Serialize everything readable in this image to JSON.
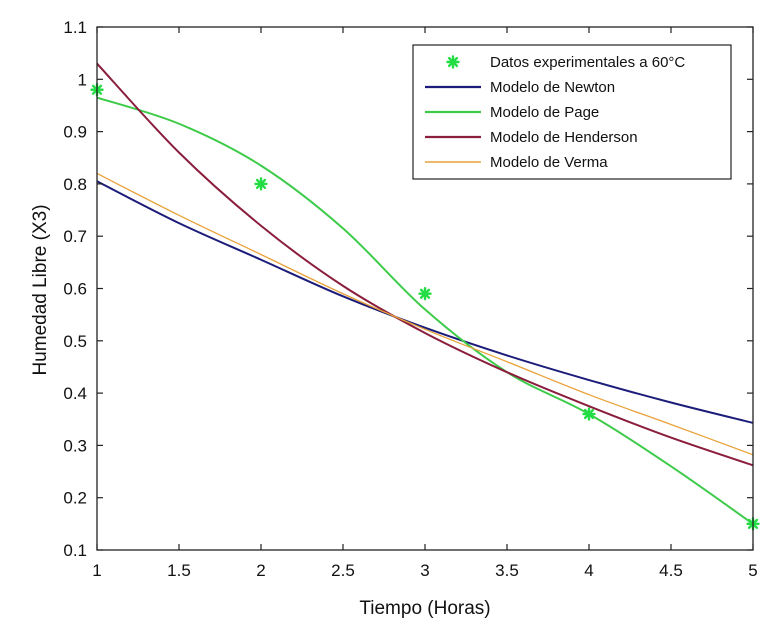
{
  "chart_data": {
    "type": "line",
    "title": "",
    "xlabel": "Tiempo (Horas)",
    "ylabel": "Humedad Libre (X3)",
    "xlim": [
      1,
      5
    ],
    "ylim": [
      0.1,
      1.1
    ],
    "xticks": [
      1,
      1.5,
      2,
      2.5,
      3,
      3.5,
      4,
      4.5,
      5
    ],
    "xtick_labels": [
      "1",
      "1.5",
      "2",
      "2.5",
      "3",
      "3.5",
      "4",
      "4.5",
      "5"
    ],
    "yticks": [
      0.1,
      0.2,
      0.3,
      0.4,
      0.5,
      0.6,
      0.7,
      0.8,
      0.9,
      1,
      1.1
    ],
    "ytick_labels": [
      "0.1",
      "0.2",
      "0.3",
      "0.4",
      "0.5",
      "0.6",
      "0.7",
      "0.8",
      "0.9",
      "1",
      "1.1"
    ],
    "grid": false,
    "legend_position": "top-right",
    "series": [
      {
        "name": "Datos experimentales a 60°C",
        "kind": "marker",
        "color": "#22dd44",
        "x": [
          1,
          2,
          3,
          4,
          5
        ],
        "y": [
          0.98,
          0.8,
          0.59,
          0.36,
          0.15
        ]
      },
      {
        "name": "Modelo de Newton",
        "kind": "line",
        "color": "#1c1c7a",
        "x": [
          1,
          1.5,
          2,
          2.5,
          3,
          3.5,
          4,
          4.5,
          5
        ],
        "y": [
          0.805,
          0.725,
          0.655,
          0.585,
          0.525,
          0.472,
          0.425,
          0.382,
          0.343
        ]
      },
      {
        "name": "Modelo de Page",
        "kind": "line",
        "color": "#3ecb4a",
        "x": [
          1,
          1.5,
          2,
          2.5,
          3,
          3.5,
          4,
          4.5,
          5
        ],
        "y": [
          0.965,
          0.915,
          0.835,
          0.715,
          0.56,
          0.44,
          0.36,
          0.26,
          0.15
        ]
      },
      {
        "name": "Modelo de Henderson",
        "kind": "line",
        "color": "#8a1e3c",
        "x": [
          1,
          1.5,
          2,
          2.5,
          3,
          3.5,
          4,
          4.5,
          5
        ],
        "y": [
          1.03,
          0.86,
          0.72,
          0.605,
          0.515,
          0.44,
          0.375,
          0.315,
          0.262
        ]
      },
      {
        "name": "Modelo de Verma",
        "kind": "line",
        "color": "#e8a23a",
        "x": [
          1,
          1.5,
          2,
          2.5,
          3,
          3.5,
          4,
          4.5,
          5
        ],
        "y": [
          0.82,
          0.74,
          0.665,
          0.59,
          0.522,
          0.46,
          0.397,
          0.34,
          0.282
        ]
      }
    ]
  }
}
